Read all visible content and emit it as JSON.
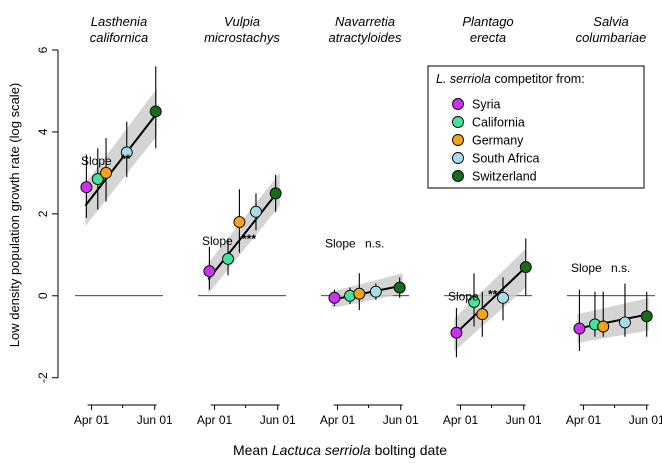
{
  "chart_data": {
    "type": "scatter",
    "ylabel": "Low density population growth rate (log scale)",
    "xlabel_prefix": "Mean ",
    "xlabel_italic": "Lactuca serriola",
    "xlabel_suffix": " bolting date",
    "yticks": [
      -2,
      0,
      2,
      4,
      6
    ],
    "xticks": [
      "Apr 01",
      "Jun 01"
    ],
    "ylim": [
      -2.3,
      6.0
    ],
    "x_range_days": [
      75,
      160
    ],
    "xtick_days": [
      91,
      152
    ],
    "legend": {
      "title_italic": "L. serriola",
      "title_rest": " competitor from:",
      "placement": "top-right",
      "entries": [
        {
          "name": "Syria",
          "color": "#cc33ee"
        },
        {
          "name": "California",
          "color": "#44e29a"
        },
        {
          "name": "Germany",
          "color": "#f5a21c"
        },
        {
          "name": "South Africa",
          "color": "#a8dcea"
        },
        {
          "name": "Switzerland",
          "color": "#136e16"
        }
      ]
    },
    "panels": [
      {
        "title_line1": "Lasthenia",
        "title_line2": "californica",
        "slope_label": "Slope",
        "slope_sig": "**",
        "points": [
          {
            "day": 86,
            "y": 2.65,
            "lo": 1.9,
            "hi": 3.45
          },
          {
            "day": 97,
            "y": 2.85,
            "lo": 2.1,
            "hi": 3.6
          },
          {
            "day": 105,
            "y": 3.0,
            "lo": 2.3,
            "hi": 3.85
          },
          {
            "day": 125,
            "y": 3.5,
            "lo": 2.9,
            "hi": 4.25
          },
          {
            "day": 153,
            "y": 4.5,
            "lo": 3.6,
            "hi": 5.6
          }
        ],
        "fit": [
          2.2,
          4.45
        ],
        "band_lo": [
          1.7,
          3.9
        ],
        "band_hi": [
          2.75,
          5.05
        ]
      },
      {
        "title_line1": "Vulpia",
        "title_line2": "microstachys",
        "slope_label": "Slope",
        "slope_sig": "***",
        "points": [
          {
            "day": 86,
            "y": 0.6,
            "lo": 0.15,
            "hi": 1.2
          },
          {
            "day": 104,
            "y": 0.9,
            "lo": 0.5,
            "hi": 1.4
          },
          {
            "day": 115,
            "y": 1.8,
            "lo": 1.05,
            "hi": 2.6
          },
          {
            "day": 131,
            "y": 2.05,
            "lo": 1.6,
            "hi": 2.5
          },
          {
            "day": 150,
            "y": 2.5,
            "lo": 2.05,
            "hi": 2.95
          }
        ],
        "fit": [
          0.4,
          2.6
        ],
        "band_lo": [
          0.05,
          2.2
        ],
        "band_hi": [
          0.8,
          3.0
        ]
      },
      {
        "title_line1": "Navarretia",
        "title_line2": "atractyloides",
        "slope_label": "Slope",
        "slope_sig": "n.s.",
        "points": [
          {
            "day": 88,
            "y": -0.05,
            "lo": -0.25,
            "hi": 0.15
          },
          {
            "day": 103,
            "y": 0.0,
            "lo": -0.2,
            "hi": 0.2
          },
          {
            "day": 112,
            "y": 0.05,
            "lo": -0.35,
            "hi": 0.55
          },
          {
            "day": 128,
            "y": 0.1,
            "lo": -0.1,
            "hi": 0.3
          },
          {
            "day": 151,
            "y": 0.2,
            "lo": -0.05,
            "hi": 0.45
          }
        ],
        "fit": [
          -0.1,
          0.25
        ],
        "band_lo": [
          -0.3,
          0.05
        ],
        "band_hi": [
          0.1,
          0.55
        ]
      },
      {
        "title_line1": "Plantago",
        "title_line2": "erecta",
        "slope_label": "Slope",
        "slope_sig": "**",
        "points": [
          {
            "day": 87,
            "y": -0.9,
            "lo": -1.5,
            "hi": -0.3
          },
          {
            "day": 104,
            "y": -0.15,
            "lo": -0.75,
            "hi": 0.55
          },
          {
            "day": 112,
            "y": -0.45,
            "lo": -1.0,
            "hi": 0.1
          },
          {
            "day": 132,
            "y": -0.05,
            "lo": -0.6,
            "hi": 0.45
          },
          {
            "day": 154,
            "y": 0.7,
            "lo": 0.0,
            "hi": 1.4
          }
        ],
        "fit": [
          -0.95,
          0.7
        ],
        "band_lo": [
          -1.35,
          0.2
        ],
        "band_hi": [
          -0.55,
          1.15
        ]
      },
      {
        "title_line1": "Salvia",
        "title_line2": "columbariae",
        "slope_label": "Slope",
        "slope_sig": "n.s.",
        "points": [
          {
            "day": 87,
            "y": -0.8,
            "lo": -1.35,
            "hi": 0.15
          },
          {
            "day": 102,
            "y": -0.7,
            "lo": -1.0,
            "hi": 0.1
          },
          {
            "day": 110,
            "y": -0.75,
            "lo": -1.0,
            "hi": 0.1
          },
          {
            "day": 131,
            "y": -0.65,
            "lo": -1.0,
            "hi": 0.3
          },
          {
            "day": 152,
            "y": -0.5,
            "lo": -1.0,
            "hi": 0.1
          }
        ],
        "fit": [
          -0.8,
          -0.45
        ],
        "band_lo": [
          -1.15,
          -0.85
        ],
        "band_hi": [
          -0.45,
          -0.05
        ]
      }
    ]
  }
}
